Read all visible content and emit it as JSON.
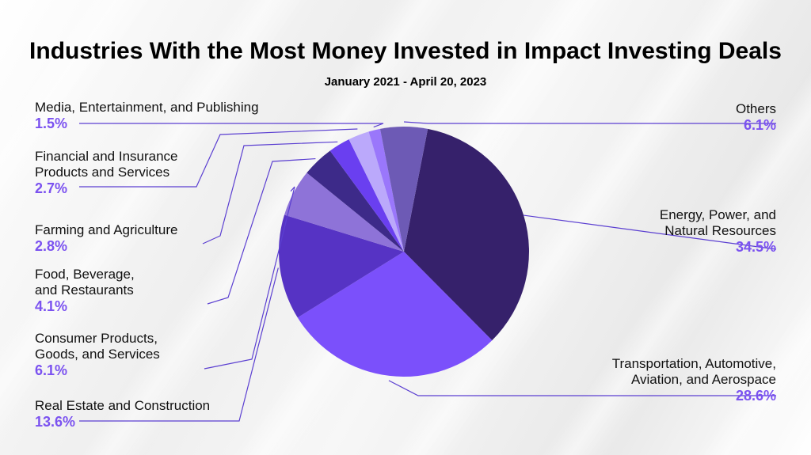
{
  "chart_data": {
    "type": "pie",
    "title": "Industries With the Most Money Invested in Impact Investing Deals",
    "subtitle": "January 2021 - April 20, 2023",
    "slices": [
      {
        "label": "Energy, Power, and\nNatural Resources",
        "value": 34.5,
        "display": "34.5%",
        "color": "#36216b"
      },
      {
        "label": "Transportation, Automotive,\nAviation, and Aerospace",
        "value": 28.6,
        "display": "28.6%",
        "color": "#7b50fb"
      },
      {
        "label": "Real Estate and Construction",
        "value": 13.6,
        "display": "13.6%",
        "color": "#5633c4"
      },
      {
        "label": "Consumer Products,\nGoods, and Services",
        "value": 6.1,
        "display": "6.1%",
        "color": "#8e73d8"
      },
      {
        "label": "Food, Beverage,\nand Restaurants",
        "value": 4.1,
        "display": "4.1%",
        "color": "#3d2a89"
      },
      {
        "label": "Farming and Agriculture",
        "value": 2.8,
        "display": "2.8%",
        "color": "#6a3ff0"
      },
      {
        "label": "Financial and Insurance\nProducts and Services",
        "value": 2.7,
        "display": "2.7%",
        "color": "#bba9fb"
      },
      {
        "label": "Media, Entertainment, and Publishing",
        "value": 1.5,
        "display": "1.5%",
        "color": "#9a77fb"
      },
      {
        "label": "Others",
        "value": 6.1,
        "display": "6.1%",
        "color": "#6d5ab5"
      }
    ],
    "start_angle_deg": 11.0,
    "direction": "clockwise"
  },
  "colors": {
    "leader_line": "#5b3fd1",
    "percent_text": "#7b52f0"
  }
}
